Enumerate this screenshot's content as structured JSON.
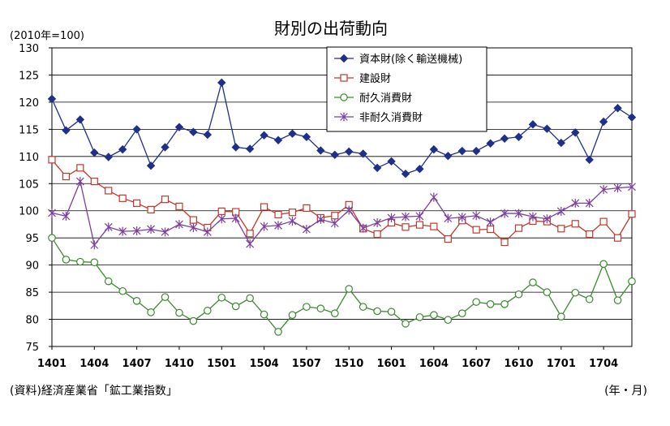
{
  "chart_data": {
    "type": "line",
    "title": "財別の出荷動向",
    "unit_label": "(2010年=100)",
    "xlabel": "(年・月)",
    "source": "(資料)経済産業省「鉱工業指数」",
    "ylim": [
      75,
      130
    ],
    "yticks": [
      75,
      80,
      85,
      90,
      95,
      100,
      105,
      110,
      115,
      120,
      125,
      130
    ],
    "grid": true,
    "legend_position": "top-right",
    "x": [
      "1401",
      "1402",
      "1403",
      "1404",
      "1405",
      "1406",
      "1407",
      "1408",
      "1409",
      "1410",
      "1411",
      "1412",
      "1501",
      "1502",
      "1503",
      "1504",
      "1505",
      "1506",
      "1507",
      "1508",
      "1509",
      "1510",
      "1511",
      "1512",
      "1601",
      "1602",
      "1603",
      "1604",
      "1605",
      "1606",
      "1607",
      "1608",
      "1609",
      "1610",
      "1611",
      "1612",
      "1701",
      "1702",
      "1703",
      "1704",
      "1705",
      "1706"
    ],
    "x_tick_labels": [
      "1401",
      "1404",
      "1407",
      "1410",
      "1501",
      "1504",
      "1507",
      "1510",
      "1601",
      "1604",
      "1607",
      "1610",
      "1701",
      "1704"
    ],
    "series": [
      {
        "name": "資本財(除く輸送機械)",
        "color": "#1f2f8c",
        "marker": "diamond",
        "values": [
          120.6,
          114.8,
          116.8,
          110.7,
          109.9,
          111.3,
          115.0,
          108.3,
          111.7,
          115.4,
          114.5,
          114.0,
          123.6,
          111.7,
          111.4,
          113.9,
          113.0,
          114.2,
          113.6,
          111.1,
          110.3,
          110.9,
          110.5,
          107.9,
          109.1,
          106.8,
          107.7,
          111.3,
          110.1,
          111.0,
          111.0,
          112.4,
          113.3,
          113.6,
          115.9,
          115.1,
          112.5,
          114.4,
          109.4,
          116.4,
          118.9,
          117.2
        ]
      },
      {
        "name": "建設財",
        "color": "#c0392b",
        "marker": "square",
        "values": [
          109.4,
          106.3,
          107.9,
          105.4,
          103.7,
          102.3,
          101.4,
          100.2,
          102.1,
          100.8,
          98.3,
          96.9,
          99.9,
          99.8,
          95.8,
          100.7,
          99.3,
          99.7,
          100.5,
          98.7,
          99.1,
          101.1,
          96.7,
          95.7,
          97.8,
          97.0,
          97.4,
          97.1,
          94.8,
          98.2,
          96.5,
          96.6,
          94.2,
          96.8,
          98.1,
          98.0,
          96.7,
          97.6,
          95.7,
          98.0,
          95.0,
          99.4
        ]
      },
      {
        "name": "耐久消費財",
        "color": "#3a8a2e",
        "marker": "circle",
        "values": [
          95.0,
          91.0,
          90.6,
          90.5,
          87.0,
          85.2,
          83.4,
          81.3,
          84.1,
          81.2,
          79.7,
          81.6,
          84.0,
          82.4,
          83.9,
          80.9,
          77.7,
          80.8,
          82.3,
          82.0,
          81.1,
          85.6,
          82.3,
          81.5,
          81.4,
          79.2,
          80.4,
          80.8,
          79.9,
          81.1,
          83.2,
          82.8,
          82.8,
          84.6,
          86.8,
          85.0,
          80.5,
          84.9,
          83.7,
          90.2,
          83.5,
          87.0
        ]
      },
      {
        "name": "非耐久消費財",
        "color": "#7b3fa0",
        "marker": "star",
        "values": [
          99.6,
          99.0,
          105.4,
          93.7,
          97.0,
          96.2,
          96.3,
          96.6,
          96.1,
          97.5,
          96.9,
          96.1,
          98.5,
          98.6,
          93.9,
          97.1,
          97.3,
          98.1,
          96.6,
          98.4,
          97.7,
          100.1,
          96.8,
          97.8,
          98.7,
          98.9,
          99.0,
          102.5,
          98.6,
          98.8,
          99.1,
          97.9,
          99.5,
          99.5,
          98.9,
          98.5,
          99.9,
          101.4,
          101.4,
          103.9,
          104.2,
          104.4
        ]
      }
    ]
  }
}
